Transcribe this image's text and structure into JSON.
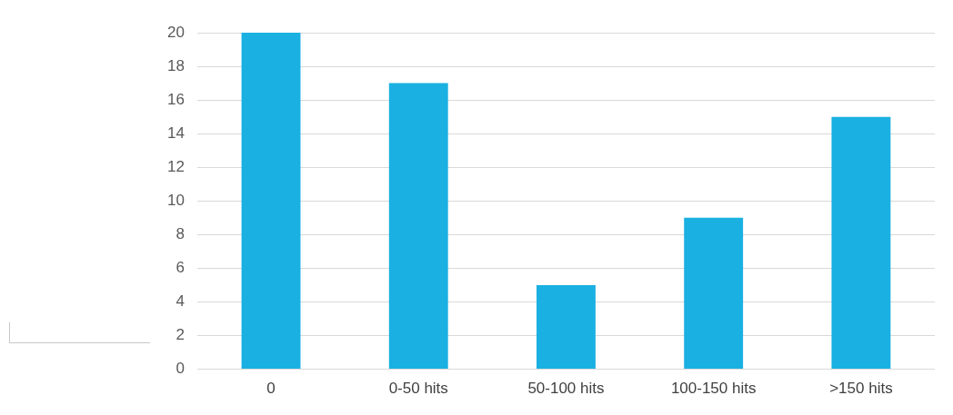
{
  "chart_data": {
    "type": "bar",
    "categories": [
      "0",
      "0-50 hits",
      "50-100 hits",
      "100-150 hits",
      ">150 hits"
    ],
    "values": [
      20,
      17,
      5,
      9,
      15
    ],
    "color": "#1ab0e2",
    "ylim": [
      0,
      20
    ],
    "yticks": [
      0,
      2,
      4,
      6,
      8,
      10,
      12,
      14,
      16,
      18,
      20
    ],
    "grid": "y"
  }
}
